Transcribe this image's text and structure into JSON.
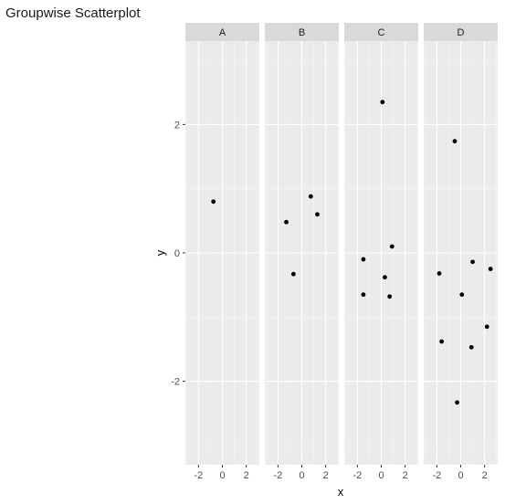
{
  "title": "Groupwise Scatterplot",
  "chart_data": {
    "type": "scatter",
    "facet_layout": "columns",
    "xlabel": "x",
    "ylabel": "y",
    "xlim": [
      -3.1,
      3.1
    ],
    "ylim": [
      -3.3,
      3.3
    ],
    "x_ticks": [
      -2,
      0,
      2
    ],
    "y_ticks": [
      -2,
      0,
      2
    ],
    "grid": true,
    "colors": {
      "panel_bg": "#ebebeb",
      "strip_bg": "#d9d9d9",
      "grid_major": "#ffffff",
      "grid_minor": "#f5f5f5",
      "point": "#000000"
    },
    "panels": [
      {
        "label": "A",
        "points": [
          [
            -0.75,
            0.8
          ]
        ]
      },
      {
        "label": "B",
        "points": [
          [
            0.75,
            0.88
          ],
          [
            1.3,
            0.6
          ],
          [
            -1.3,
            0.48
          ],
          [
            -0.7,
            -0.33
          ]
        ]
      },
      {
        "label": "C",
        "points": [
          [
            0.1,
            2.35
          ],
          [
            0.9,
            0.1
          ],
          [
            -1.5,
            -0.1
          ],
          [
            0.3,
            -0.38
          ],
          [
            -1.5,
            -0.65
          ],
          [
            0.7,
            -0.68
          ]
        ]
      },
      {
        "label": "D",
        "points": [
          [
            -0.5,
            1.74
          ],
          [
            1.0,
            -0.14
          ],
          [
            2.5,
            -0.25
          ],
          [
            -1.8,
            -0.32
          ],
          [
            0.1,
            -0.65
          ],
          [
            2.2,
            -1.15
          ],
          [
            -1.6,
            -1.38
          ],
          [
            0.9,
            -1.47
          ],
          [
            -0.3,
            -2.33
          ]
        ]
      }
    ]
  }
}
